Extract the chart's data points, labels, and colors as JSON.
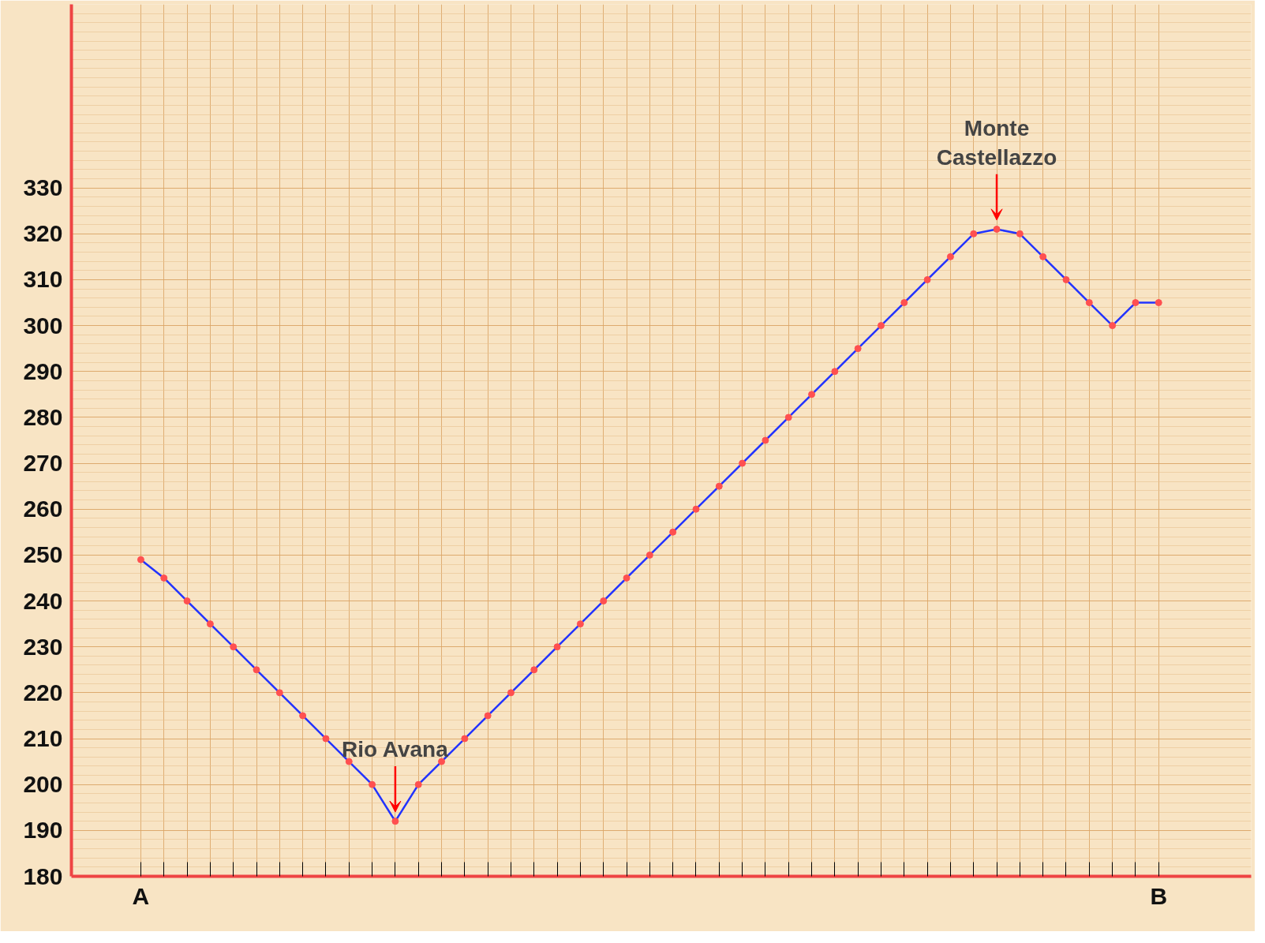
{
  "chart_data": {
    "type": "line",
    "categories": [
      "A",
      null,
      null,
      null,
      null,
      null,
      null,
      null,
      null,
      null,
      null,
      null,
      null,
      null,
      null,
      null,
      null,
      null,
      null,
      null,
      null,
      null,
      null,
      null,
      null,
      null,
      null,
      null,
      null,
      null,
      null,
      null,
      null,
      null,
      null,
      null,
      null,
      null,
      null,
      null,
      null,
      null,
      null,
      null,
      "B"
    ],
    "series": [
      {
        "color": "#2233ff",
        "values": [
          249,
          245,
          240,
          235,
          230,
          225,
          220,
          215,
          210,
          205,
          200,
          192,
          200,
          205,
          210,
          215,
          220,
          225,
          230,
          235,
          240,
          245,
          250,
          255,
          260,
          265,
          270,
          275,
          280,
          285,
          290,
          295,
          300,
          305,
          310,
          315,
          320,
          321,
          320,
          315,
          310,
          305,
          300,
          305,
          305
        ]
      }
    ],
    "marker": "circle",
    "line_style": "solid",
    "grid": true,
    "ylim": [
      180,
      370
    ],
    "yticks": [
      180,
      190,
      200,
      210,
      220,
      230,
      240,
      250,
      260,
      270,
      280,
      290,
      300,
      310,
      320,
      330
    ],
    "annotations": [
      {
        "text": "Rio Avana",
        "y": 192
      },
      {
        "text": "Monte\nCastellazzo",
        "y": 321
      }
    ]
  }
}
